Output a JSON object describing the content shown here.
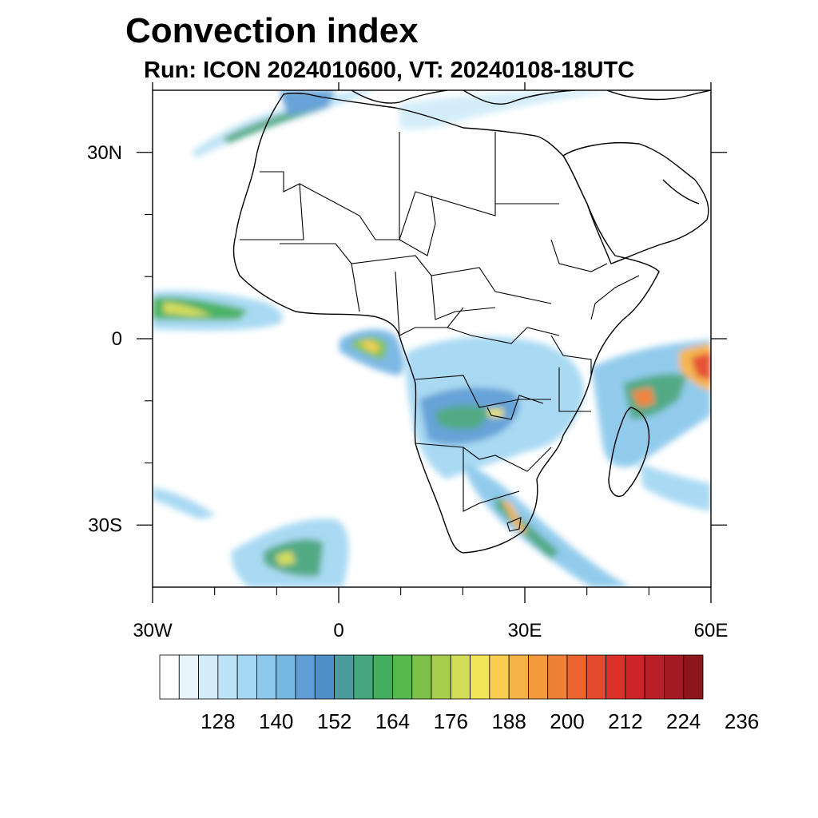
{
  "title": "Convection index",
  "subtitle": "Run: ICON 2024010600,  VT: 20240108-18UTC",
  "map": {
    "lon_range": [
      -30,
      60
    ],
    "lat_range": [
      -40,
      40
    ],
    "lat_ticks": [
      {
        "value": 30,
        "label": "30N"
      },
      {
        "value": 0,
        "label": "0"
      },
      {
        "value": -30,
        "label": "30S"
      }
    ],
    "lon_ticks": [
      {
        "value": -30,
        "label": "30W"
      },
      {
        "value": 0,
        "label": "0"
      },
      {
        "value": 30,
        "label": "30E"
      },
      {
        "value": 60,
        "label": "60E"
      }
    ],
    "minor_lon_ticks": [
      -20,
      -10,
      10,
      20,
      40,
      50
    ],
    "minor_lat_ticks": [
      20,
      10,
      -10,
      -20
    ]
  },
  "colorbar": {
    "colors": [
      "#ffffff",
      "#e8f5fc",
      "#d2ecf9",
      "#bde3f6",
      "#a5d8f3",
      "#8cc9ec",
      "#76b6e3",
      "#5f9fd6",
      "#4e8fca",
      "#4a9c9c",
      "#48a67f",
      "#43ae5e",
      "#55b94b",
      "#7ec14a",
      "#a9ce4e",
      "#d3dc57",
      "#f1e558",
      "#f8cd50",
      "#f5b347",
      "#f39a3d",
      "#f08035",
      "#ec6530",
      "#e44a2c",
      "#da3229",
      "#cc2428",
      "#b91d26",
      "#a51a22",
      "#8c1619"
    ],
    "labels": [
      "128",
      "140",
      "152",
      "164",
      "176",
      "188",
      "200",
      "212",
      "224",
      "236"
    ],
    "label_start_index": 3,
    "label_step": 3
  }
}
